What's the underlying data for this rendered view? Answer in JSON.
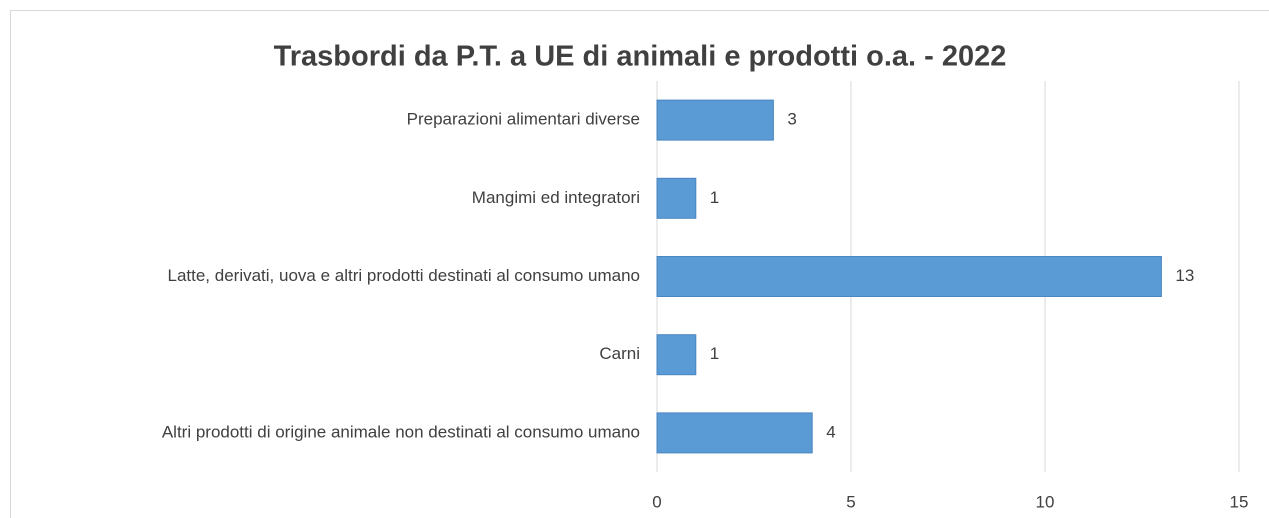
{
  "chart_data": {
    "type": "bar",
    "orientation": "horizontal",
    "title": "Trasbordi da P.T. a UE di animali e prodotti o.a. - 2022",
    "categories": [
      "Preparazioni alimentari diverse",
      "Mangimi ed integratori",
      "Latte, derivati, uova e altri prodotti destinati al consumo umano",
      "Carni",
      "Altri prodotti di origine animale non destinati al consumo umano"
    ],
    "values": [
      3,
      1,
      13,
      1,
      4
    ],
    "color": "#5b9bd5",
    "xlim": [
      0,
      15
    ],
    "xticks": [
      0,
      5,
      10,
      15
    ],
    "grid": true
  }
}
